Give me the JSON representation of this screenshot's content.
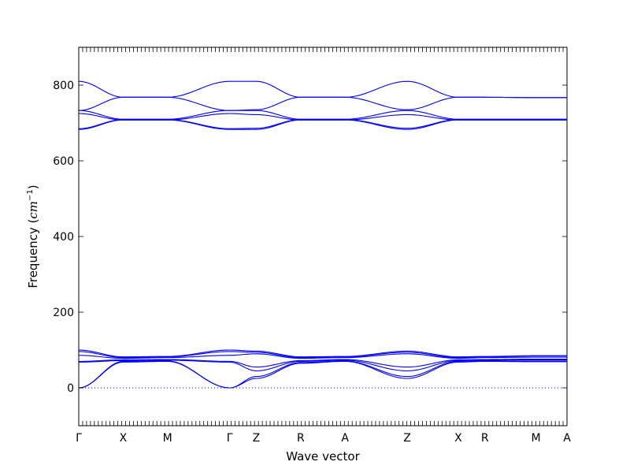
{
  "chart_data": {
    "type": "line",
    "xlabel": "Wave vector",
    "ylabel_prefix": "Frequency (",
    "ylabel_unit_base": "cm",
    "ylabel_unit_exp": "−1",
    "ylabel_suffix": ")",
    "ylim": [
      -100,
      900
    ],
    "xlim": [
      0,
      11
    ],
    "yticks": [
      0,
      200,
      400,
      600,
      800
    ],
    "xticks": [
      {
        "label": "Γ",
        "x": 0
      },
      {
        "label": "X",
        "x": 1
      },
      {
        "label": "M",
        "x": 2
      },
      {
        "label": "Γ",
        "x": 3.4
      },
      {
        "label": "Z",
        "x": 4
      },
      {
        "label": "R",
        "x": 5
      },
      {
        "label": "A",
        "x": 6
      },
      {
        "label": "Z",
        "x": 7.4
      },
      {
        "label": "X",
        "x": 8.55
      },
      {
        "label": "R",
        "x": 9.15
      },
      {
        "label": "M",
        "x": 10.3
      },
      {
        "label": "A",
        "x": 11
      }
    ],
    "grid": false,
    "zero_line": {
      "y": 0,
      "style": "dotted",
      "color": "#0000ff"
    },
    "line_color": "#0000ff",
    "series": [
      {
        "x": [
          0,
          1,
          2,
          3.4,
          4,
          5,
          6,
          7.4,
          8.55,
          9.15,
          10.3,
          11
        ],
        "values": [
          0,
          68,
          70,
          0,
          25,
          65,
          70,
          25,
          68,
          70,
          69,
          69
        ]
      },
      {
        "x": [
          0,
          1,
          2,
          3.4,
          4,
          5,
          6,
          7.4,
          8.55,
          9.15,
          10.3,
          11
        ],
        "values": [
          0,
          70,
          71,
          0,
          30,
          67,
          71,
          30,
          70,
          71,
          71,
          71
        ]
      },
      {
        "x": [
          0,
          1,
          2,
          3.4,
          4,
          5,
          6,
          7.4,
          8.55,
          9.15,
          10.3,
          11
        ],
        "values": [
          68,
          72,
          73,
          68,
          45,
          70,
          73,
          45,
          72,
          73,
          74,
          74
        ]
      },
      {
        "x": [
          0,
          1,
          2,
          3.4,
          4,
          5,
          6,
          7.4,
          8.55,
          9.15,
          10.3,
          11
        ],
        "values": [
          70,
          74,
          75,
          70,
          55,
          72,
          75,
          55,
          74,
          75,
          76,
          76
        ]
      },
      {
        "x": [
          0,
          1,
          2,
          3.4,
          4,
          5,
          6,
          7.4,
          8.55,
          9.15,
          10.3,
          11
        ],
        "values": [
          86,
          78,
          80,
          86,
          90,
          78,
          80,
          90,
          78,
          80,
          81,
          81
        ]
      },
      {
        "x": [
          0,
          1,
          2,
          3.4,
          4,
          5,
          6,
          7.4,
          8.55,
          9.15,
          10.3,
          11
        ],
        "values": [
          96,
          80,
          82,
          96,
          94,
          80,
          82,
          94,
          80,
          82,
          84,
          84
        ]
      },
      {
        "x": [
          0,
          1,
          2,
          3.4,
          4,
          5,
          6,
          7.4,
          8.55,
          9.15,
          10.3,
          11
        ],
        "values": [
          100,
          82,
          83,
          100,
          97,
          82,
          83,
          97,
          82,
          83,
          85,
          85
        ]
      },
      {
        "x": [
          0,
          1,
          2,
          3.4,
          4,
          5,
          6,
          7.4,
          8.55,
          9.15,
          10.3,
          11
        ],
        "values": [
          683,
          708,
          708,
          683,
          683,
          708,
          708,
          683,
          708,
          708,
          708,
          708
        ]
      },
      {
        "x": [
          0,
          1,
          2,
          3.4,
          4,
          5,
          6,
          7.4,
          8.55,
          9.15,
          10.3,
          11
        ],
        "values": [
          685,
          709,
          709,
          685,
          686,
          709,
          709,
          686,
          709,
          709,
          709,
          709
        ]
      },
      {
        "x": [
          0,
          1,
          2,
          3.4,
          4,
          5,
          6,
          7.4,
          8.55,
          9.15,
          10.3,
          11
        ],
        "values": [
          725,
          708,
          708,
          725,
          722,
          708,
          708,
          722,
          708,
          708,
          708,
          708
        ]
      },
      {
        "x": [
          0,
          1,
          2,
          3.4,
          4,
          5,
          6,
          7.4,
          8.55,
          9.15,
          10.3,
          11
        ],
        "values": [
          733,
          710,
          710,
          733,
          733,
          710,
          710,
          733,
          710,
          710,
          710,
          710
        ]
      },
      {
        "x": [
          0,
          1,
          2,
          3.4,
          4,
          5,
          6,
          7.4,
          8.55,
          9.15,
          10.3,
          11
        ],
        "values": [
          733,
          768,
          768,
          733,
          735,
          768,
          768,
          735,
          768,
          768,
          767,
          767
        ]
      },
      {
        "x": [
          0,
          1,
          2,
          3.4,
          4,
          5,
          6,
          7.4,
          8.55,
          9.15,
          10.3,
          11
        ],
        "values": [
          810,
          768,
          768,
          810,
          810,
          768,
          768,
          810,
          768,
          768,
          767,
          767
        ]
      }
    ]
  }
}
